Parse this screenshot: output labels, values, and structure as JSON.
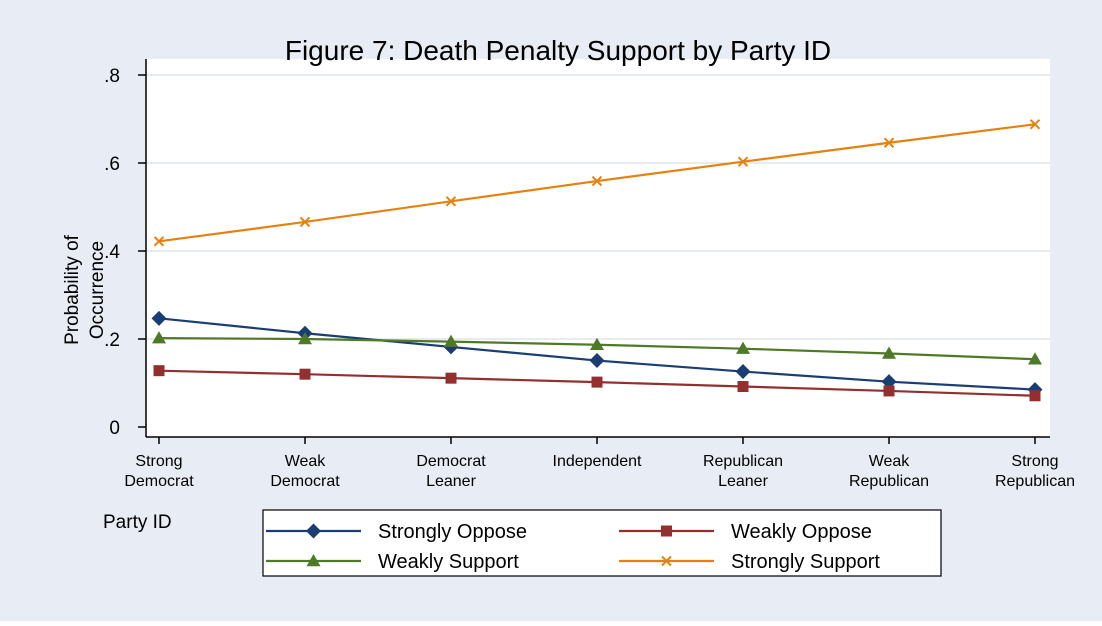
{
  "chart_data": {
    "type": "line",
    "title": "Figure 7: Death Penalty Support by Party ID",
    "xlabel": "Party ID",
    "ylabel": "Probability of Occurrence",
    "categories": [
      [
        "Strong",
        "Democrat"
      ],
      [
        "Weak",
        "Democrat"
      ],
      [
        "Democrat",
        "Leaner"
      ],
      [
        "Independent"
      ],
      [
        "Republican",
        "Leaner"
      ],
      [
        "Weak",
        "Republican"
      ],
      [
        "Strong",
        "Republican"
      ]
    ],
    "ylim": [
      0,
      0.8
    ],
    "yticks": [
      0,
      0.2,
      0.4,
      0.6,
      0.8
    ],
    "ytick_labels": [
      "0",
      ".2",
      ".4",
      ".6",
      ".8"
    ],
    "grid": true,
    "legend_position": "bottom",
    "series": [
      {
        "name": "Strongly Oppose",
        "color": "#1a3e73",
        "marker": "diamond",
        "values": [
          0.247,
          0.213,
          0.182,
          0.151,
          0.126,
          0.103,
          0.085
        ]
      },
      {
        "name": "Weakly Oppose",
        "color": "#93302f",
        "marker": "square",
        "values": [
          0.128,
          0.12,
          0.111,
          0.102,
          0.092,
          0.082,
          0.071
        ]
      },
      {
        "name": "Weakly Support",
        "color": "#4e7a28",
        "marker": "triangle",
        "values": [
          0.202,
          0.2,
          0.194,
          0.187,
          0.178,
          0.167,
          0.154
        ]
      },
      {
        "name": "Strongly Support",
        "color": "#e5820f",
        "marker": "x",
        "values": [
          0.422,
          0.466,
          0.513,
          0.559,
          0.603,
          0.646,
          0.688
        ]
      }
    ],
    "colors": {
      "outer_background": "#e8ecf5",
      "plot_background": "#ffffff",
      "grid": "#e2e5ea",
      "axis": "#000000"
    }
  }
}
